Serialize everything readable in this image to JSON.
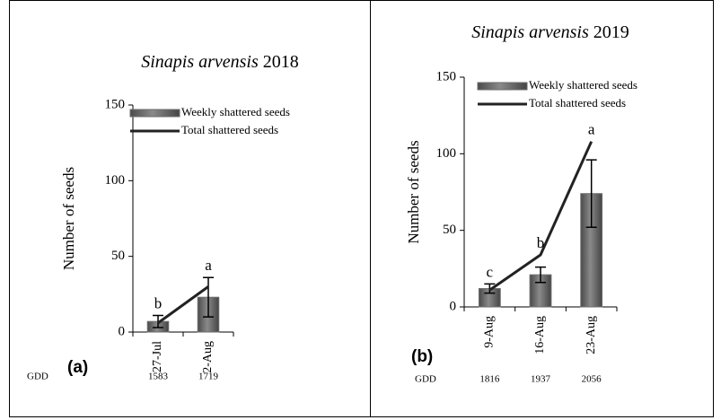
{
  "chart_data": [
    {
      "type": "bar",
      "title": {
        "species": "Sinapis arvensis",
        "year": "2018"
      },
      "panel_label": "(a)",
      "y_label": "Number of seeds",
      "categories": [
        "27-Jul",
        "2-Aug"
      ],
      "gdd_label": "GDD",
      "gdd": [
        1583,
        1719
      ],
      "annotations": [
        "b",
        "a"
      ],
      "ylim": [
        0,
        150
      ],
      "yticks": [
        0,
        50,
        100,
        150
      ],
      "series": [
        {
          "name": "Weekly shattered seeds",
          "type": "bar",
          "color": "#6e6e6e",
          "values": [
            7,
            23
          ],
          "errors": [
            4,
            13
          ]
        },
        {
          "name": "Total shattered seeds",
          "type": "line",
          "color": "#222222",
          "values": [
            6,
            30
          ]
        }
      ]
    },
    {
      "type": "bar",
      "title": {
        "species": "Sinapis arvensis",
        "year": "2019"
      },
      "panel_label": "(b)",
      "y_label": "Number of seeds",
      "categories": [
        "9-Aug",
        "16-Aug",
        "23-Aug"
      ],
      "gdd_label": "GDD",
      "gdd": [
        1816,
        1937,
        2056
      ],
      "annotations": [
        "c",
        "b",
        "a"
      ],
      "ylim": [
        0,
        150
      ],
      "yticks": [
        0,
        50,
        100,
        150
      ],
      "series": [
        {
          "name": "Weekly shattered seeds",
          "type": "bar",
          "color": "#6e6e6e",
          "values": [
            12,
            21,
            74
          ],
          "errors": [
            3,
            5,
            22
          ]
        },
        {
          "name": "Total shattered seeds",
          "type": "line",
          "color": "#222222",
          "values": [
            11,
            34,
            108
          ]
        }
      ]
    }
  ]
}
